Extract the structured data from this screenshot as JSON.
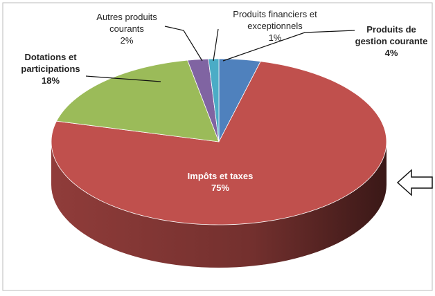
{
  "chart_data": {
    "type": "pie",
    "categories": [
      "Produits de gestion courante",
      "Impôts et taxes",
      "Dotations et participations",
      "Autres produits courants",
      "Produits financiers et exceptionnels"
    ],
    "values": [
      4,
      75,
      18,
      2,
      1
    ],
    "value_labels": [
      "4%",
      "75%",
      "18%",
      "2%",
      "1%"
    ],
    "colors": [
      "#4f81bd",
      "#c0504d",
      "#9bbb59",
      "#8064a2",
      "#4bacc6"
    ]
  }
}
